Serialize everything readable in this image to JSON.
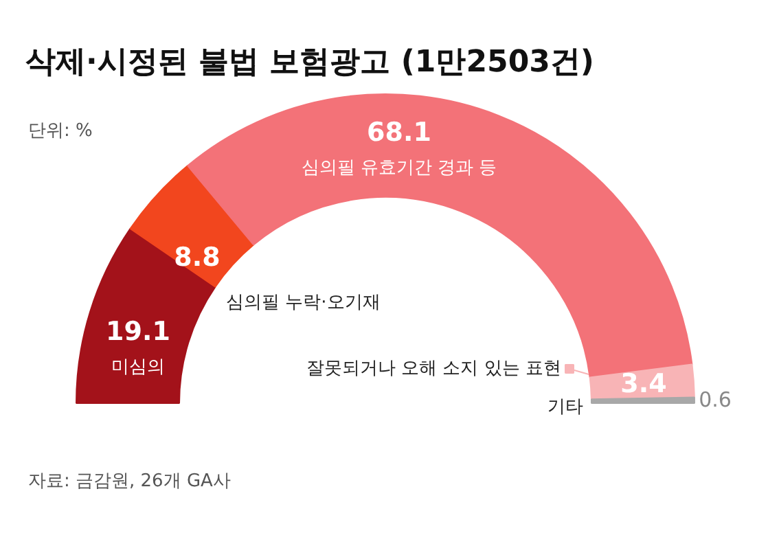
{
  "chart_data": {
    "type": "donut",
    "title": "삭제·시정된 불법 보험광고 (1만2503건)",
    "subtitle": "단위: %",
    "categories": [
      "미심의",
      "심의필 누락·오기재",
      "심의필 유효기간 경과 등",
      "잘못되거나 오해 소지 있는 표현",
      "기타"
    ],
    "values": [
      19.1,
      8.8,
      68.1,
      3.4,
      0.6
    ],
    "colors": [
      "#a3121a",
      "#f2461e",
      "#f37278",
      "#f8b4b6",
      "#a8a8a8"
    ],
    "data_labels": true,
    "annotations": [
      "자료: 금감원, 26개 GA사"
    ]
  }
}
